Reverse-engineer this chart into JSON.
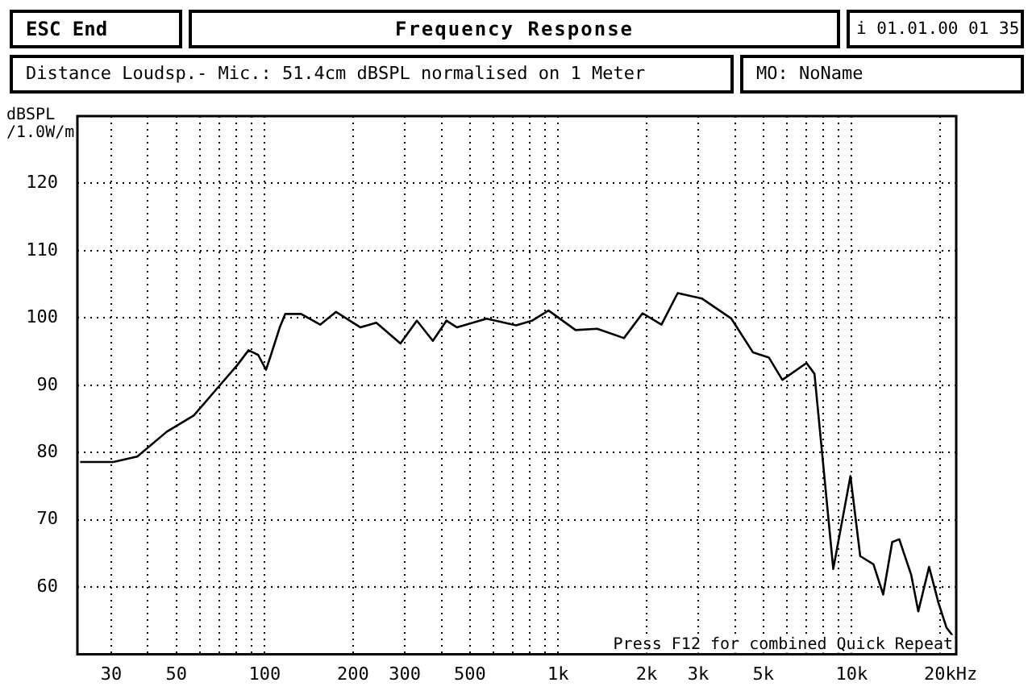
{
  "chart_data": {
    "type": "line",
    "title": "Frequency Response",
    "ylabel": "dBSPL /1.0W/m",
    "annotations": [
      "ESC End",
      "i 01.01.00 01 35",
      "Distance Loudsp.- Mic.: 51.4cm dBSPL normalised on 1 Meter",
      "MO: NoName",
      "Press F12 for combined Quick Repeat"
    ],
    "log": "x",
    "grid": true,
    "legend": false,
    "marker": "none",
    "line_style": "solid",
    "xlim": [
      23,
      22700
    ],
    "ylim": [
      50,
      130
    ],
    "xticks": [
      30,
      {
        "value": 40,
        "label": null
      },
      50,
      {
        "value": 60,
        "label": null
      },
      {
        "value": 70,
        "label": null
      },
      {
        "value": 80,
        "label": null
      },
      {
        "value": 90,
        "label": null
      },
      100,
      200,
      300,
      {
        "value": 400,
        "label": null
      },
      500,
      {
        "value": 600,
        "label": null
      },
      {
        "value": 700,
        "label": null
      },
      {
        "value": 800,
        "label": null
      },
      {
        "value": 900,
        "label": null
      },
      {
        "value": 1000,
        "label": "1k"
      },
      {
        "value": 2000,
        "label": "2k"
      },
      {
        "value": 3000,
        "label": "3k"
      },
      {
        "value": 4000,
        "label": null
      },
      {
        "value": 5000,
        "label": "5k"
      },
      {
        "value": 6000,
        "label": null
      },
      {
        "value": 7000,
        "label": null
      },
      {
        "value": 8000,
        "label": null
      },
      {
        "value": 9000,
        "label": null
      },
      {
        "value": 10000,
        "label": "10k"
      },
      {
        "value": 20000,
        "label": "20k"
      }
    ],
    "xlabel": "Hz",
    "yticks": [
      60,
      70,
      80,
      90,
      100,
      110,
      120
    ],
    "x": [
      23.5,
      30.5,
      36.8,
      46.4,
      57.3,
      67.8,
      80.3,
      88.1,
      95,
      101,
      105,
      112.5,
      117.5,
      133,
      154.5,
      175,
      212,
      240,
      290,
      330,
      374,
      416,
      452,
      570,
      719,
      815,
      927,
      1146,
      1357,
      1675,
      1938,
      2248,
      2553,
      3084,
      3890,
      4605,
      5224,
      5803,
      7015,
      7466,
      8652,
      9900,
      10690,
      11860,
      12800,
      13740,
      14520,
      15950,
      16860,
      18350,
      19740,
      21020,
      22400
    ],
    "series": [
      {
        "color": "#000000",
        "values": [
          78.6,
          78.6,
          79.4,
          83.1,
          85.5,
          89.2,
          92.9,
          95.2,
          94.5,
          92.3,
          94.5,
          98.6,
          100.6,
          100.6,
          99.0,
          100.9,
          98.6,
          99.3,
          96.2,
          99.6,
          96.6,
          99.6,
          98.6,
          99.9,
          98.9,
          99.6,
          101.1,
          98.2,
          98.4,
          97.0,
          100.7,
          99.0,
          103.7,
          102.9,
          99.9,
          94.9,
          94.1,
          90.8,
          93.3,
          91.7,
          62.7,
          76.5,
          64.6,
          63.4,
          58.9,
          66.7,
          67.1,
          61.8,
          56.4,
          63.0,
          57.7,
          54.0,
          52.4
        ]
      }
    ]
  }
}
